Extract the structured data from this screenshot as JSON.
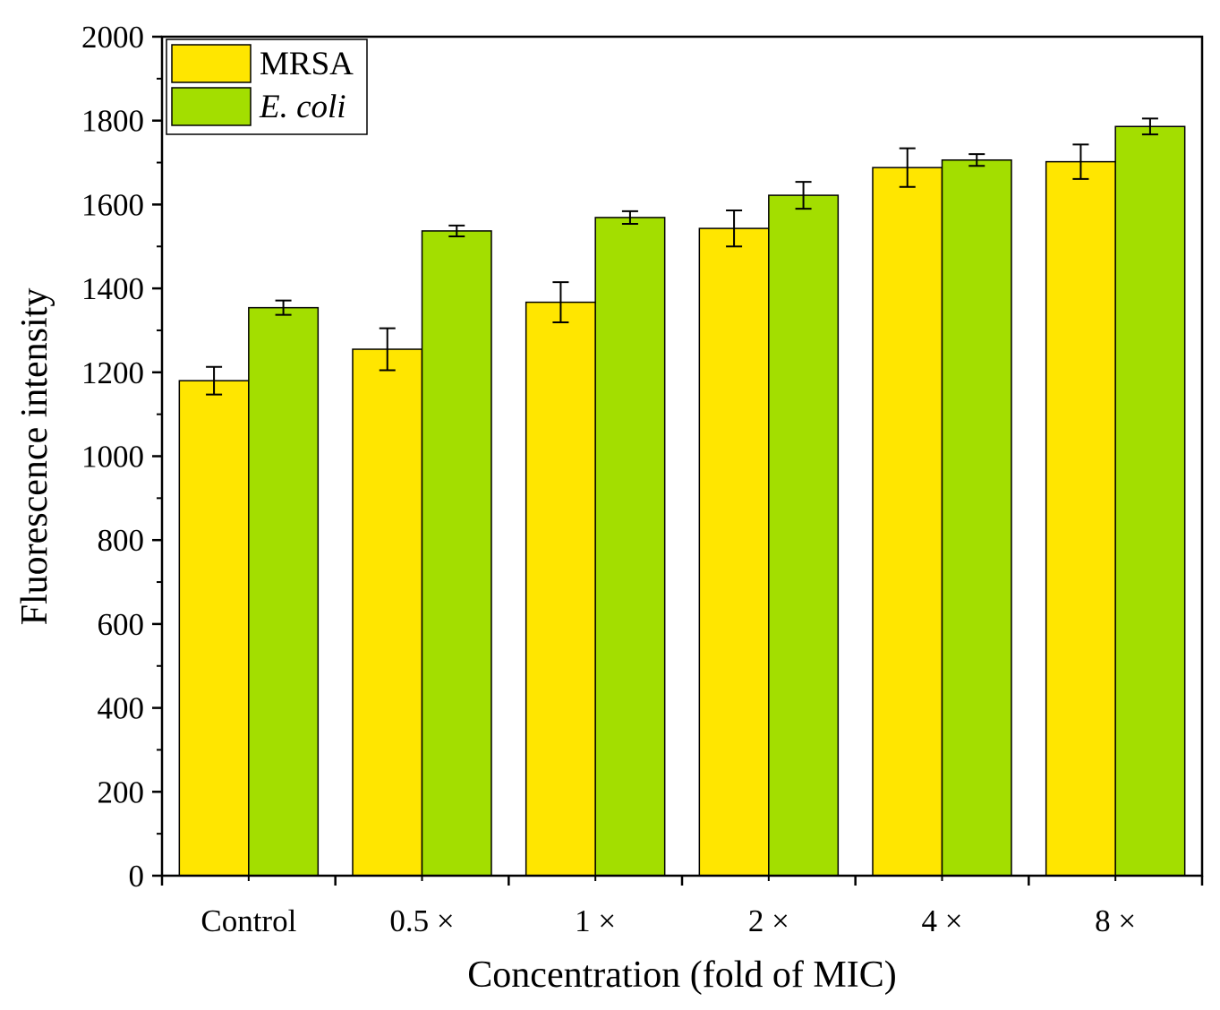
{
  "chart_data": {
    "type": "bar",
    "xlabel": "Concentration (fold of MIC)",
    "ylabel": "Fluorescence intensity",
    "ylim": [
      0,
      2000
    ],
    "yticks": [
      0,
      200,
      400,
      600,
      800,
      1000,
      1200,
      1400,
      1600,
      1800,
      2000
    ],
    "ytick_labels": [
      "0",
      "200",
      "400",
      "600",
      "800",
      "1000",
      "1200",
      "1400",
      "1600",
      "1800",
      "2000"
    ],
    "categories": [
      "Control",
      "0.5 ×",
      "1 ×",
      "2 ×",
      "4 ×",
      "8 ×"
    ],
    "series": [
      {
        "name": "MRSA",
        "italic": false,
        "color": "#FFE600",
        "values": [
          1180,
          1255,
          1367,
          1543,
          1688,
          1702
        ],
        "errors": [
          33,
          50,
          48,
          43,
          46,
          41
        ]
      },
      {
        "name": "E. coli",
        "italic": true,
        "color": "#A3DE00",
        "values": [
          1354,
          1537,
          1569,
          1622,
          1706,
          1786
        ],
        "errors": [
          17,
          13,
          15,
          32,
          14,
          19
        ]
      }
    ],
    "grid": false,
    "legend": "top-left"
  }
}
